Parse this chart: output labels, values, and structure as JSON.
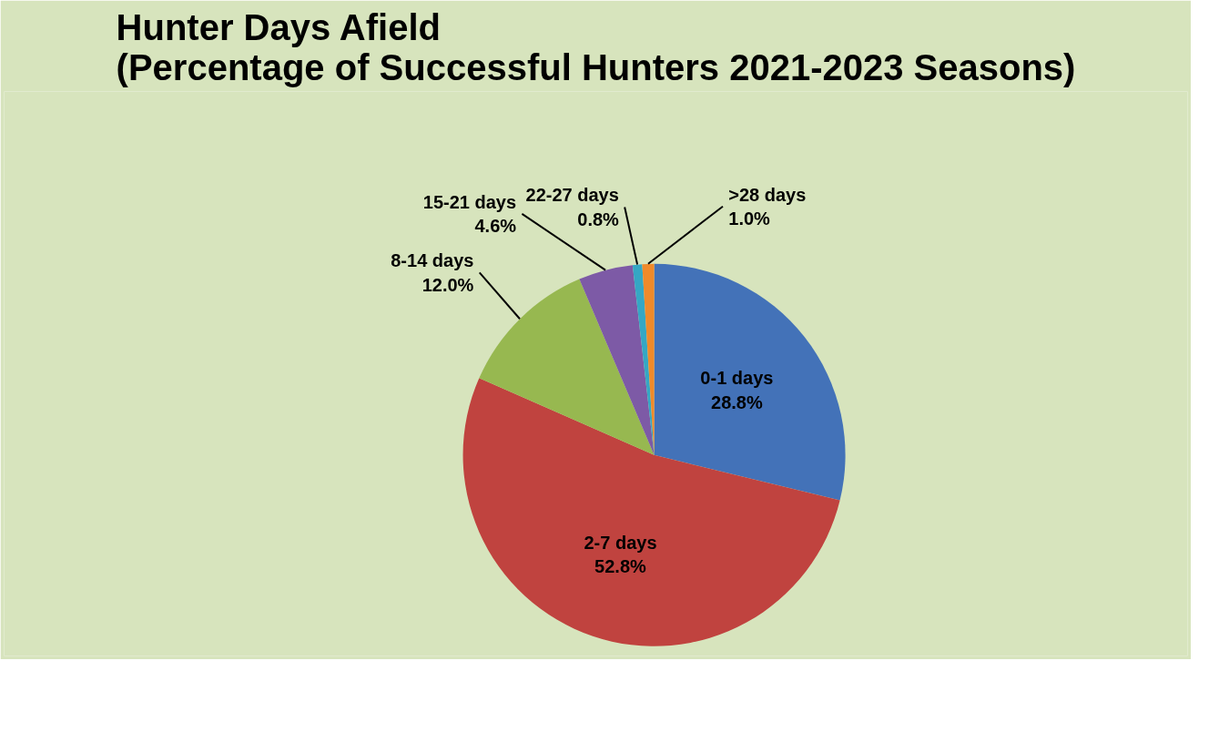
{
  "chart_data": {
    "type": "pie",
    "title": "Hunter Days Afield\n(Percentage of Successful Hunters 2021-2023 Seasons)",
    "categories": [
      "0-1 days",
      "2-7 days",
      "8-14 days",
      "15-21 days",
      "22-27 days",
      ">28 days"
    ],
    "values": [
      28.8,
      52.8,
      12.0,
      4.6,
      0.8,
      1.0
    ],
    "colors": [
      "#4372b8",
      "#c0433f",
      "#97b850",
      "#7d5aa6",
      "#35a7c4",
      "#f08a2a"
    ],
    "value_labels": [
      "28.8%",
      "52.8%",
      "12.0%",
      "4.6%",
      "0.8%",
      "1.0%"
    ]
  }
}
